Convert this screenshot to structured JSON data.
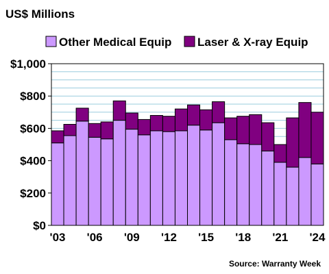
{
  "chart_data": {
    "type": "bar",
    "stacked": true,
    "title": "",
    "unit_label": "US$ Millions",
    "xlabel": "",
    "ylabel": "",
    "source": "Source: Warranty Week",
    "categories": [
      "2003",
      "2004",
      "2005",
      "2006",
      "2007",
      "2008",
      "2009",
      "2010",
      "2011",
      "2012",
      "2013",
      "2014",
      "2015",
      "2016",
      "2017",
      "2018",
      "2019",
      "2020",
      "2021",
      "2022",
      "2023",
      "2024"
    ],
    "x_tick_labels": [
      "'03",
      "",
      "",
      "'06",
      "",
      "",
      "'09",
      "",
      "",
      "'12",
      "",
      "",
      "'15",
      "",
      "",
      "'18",
      "",
      "",
      "'21",
      "",
      "",
      "'24"
    ],
    "ylim": [
      0,
      1000
    ],
    "y_ticks": [
      0,
      200,
      400,
      600,
      800,
      1000
    ],
    "y_tick_labels": [
      "$0",
      "$200",
      "$400",
      "$600",
      "$800",
      "$1,000"
    ],
    "grid": true,
    "legend_position": "top",
    "series": [
      {
        "name": "Other Medical Equip",
        "color": "#cc99ff",
        "values": [
          510,
          555,
          645,
          545,
          535,
          650,
          595,
          560,
          585,
          580,
          585,
          620,
          590,
          635,
          530,
          505,
          500,
          460,
          390,
          360,
          420,
          380
        ]
      },
      {
        "name": "Laser & X-ray Equip",
        "color": "#800080",
        "values": [
          75,
          70,
          80,
          85,
          105,
          120,
          100,
          95,
          95,
          95,
          135,
          125,
          125,
          130,
          135,
          170,
          185,
          175,
          110,
          305,
          340,
          320
        ]
      }
    ]
  }
}
